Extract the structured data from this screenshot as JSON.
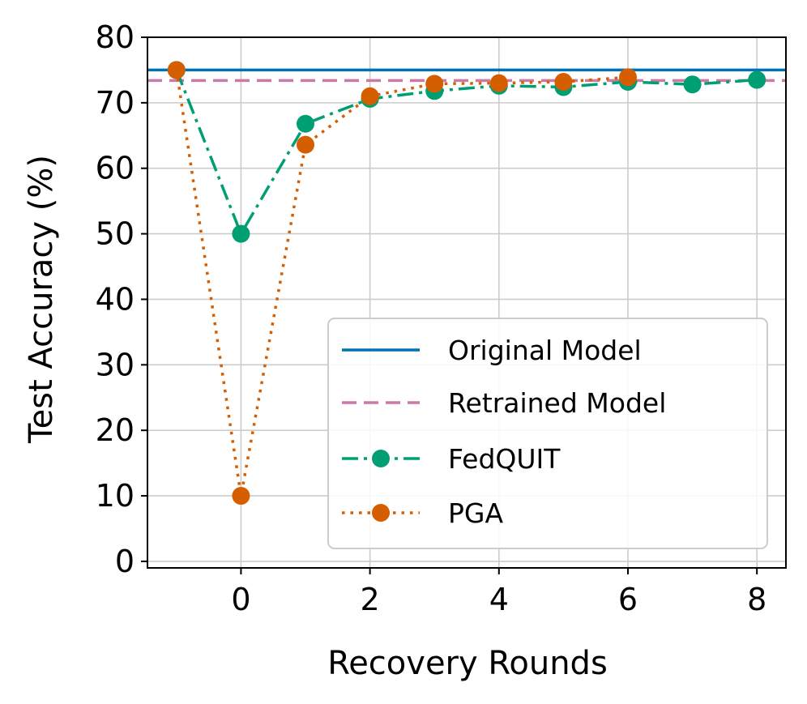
{
  "chart_data": {
    "type": "line",
    "title": "",
    "xlabel": "Recovery Rounds",
    "ylabel": "Test Accuracy (%)",
    "xlim": [
      -1.45,
      8.45
    ],
    "ylim": [
      -1,
      80
    ],
    "xticks": [
      0,
      2,
      4,
      6,
      8
    ],
    "yticks": [
      0,
      10,
      20,
      30,
      40,
      50,
      60,
      70,
      80
    ],
    "grid": true,
    "legend_position": "lower-right",
    "reference_lines": [
      {
        "name": "Original Model",
        "value": 75.0,
        "color": "#0072b2",
        "style": "solid"
      },
      {
        "name": "Retrained Model",
        "value": 73.4,
        "color": "#cc79a7",
        "style": "dashed"
      }
    ],
    "series": [
      {
        "name": "FedQUIT",
        "color": "#009e73",
        "style": "dashdot",
        "x": [
          -1,
          0,
          1,
          2,
          3,
          4,
          5,
          6,
          7,
          8
        ],
        "y": [
          75.0,
          50.0,
          66.8,
          70.6,
          71.8,
          72.6,
          72.4,
          73.2,
          72.8,
          73.5
        ]
      },
      {
        "name": "PGA",
        "color": "#d55e00",
        "style": "dotted",
        "x": [
          -1,
          0,
          1,
          2,
          3,
          4,
          5,
          6
        ],
        "y": [
          75.0,
          10.0,
          63.6,
          71.0,
          72.9,
          73.0,
          73.2,
          73.9
        ]
      }
    ]
  }
}
